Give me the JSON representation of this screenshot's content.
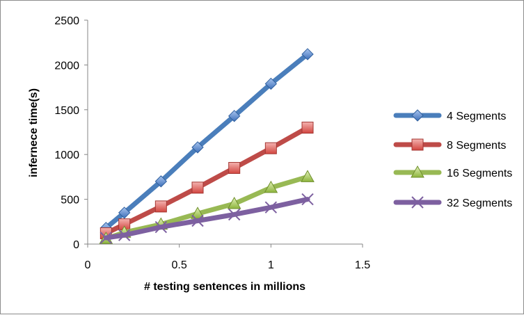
{
  "chart_data": {
    "type": "line",
    "title": "",
    "xlabel": "# testing sentences in millions",
    "ylabel": "infernece time(s)",
    "xlim": [
      0,
      1.5
    ],
    "ylim": [
      0,
      2500
    ],
    "x_ticks": [
      "0",
      "0.5",
      "1",
      "1.5"
    ],
    "y_ticks": [
      "0",
      "500",
      "1000",
      "1500",
      "2000",
      "2500"
    ],
    "grid": false,
    "legend_position": "right",
    "x": [
      0.1,
      0.2,
      0.4,
      0.6,
      0.8,
      1.0,
      1.2
    ],
    "series": [
      {
        "name": "4 Segments",
        "color": "#4a7ebb",
        "marker": "diamond",
        "values": [
          180,
          350,
          700,
          1080,
          1430,
          1790,
          2120
        ]
      },
      {
        "name": "8 Segments",
        "color": "#be4b48",
        "marker": "square",
        "values": [
          120,
          220,
          420,
          630,
          850,
          1070,
          1300
        ]
      },
      {
        "name": "16 Segments",
        "color": "#98b954",
        "marker": "triangle",
        "values": [
          60,
          130,
          220,
          340,
          450,
          630,
          750
        ]
      },
      {
        "name": "32 Segments",
        "color": "#7d60a0",
        "marker": "x",
        "values": [
          70,
          100,
          190,
          260,
          330,
          410,
          500
        ]
      }
    ]
  }
}
